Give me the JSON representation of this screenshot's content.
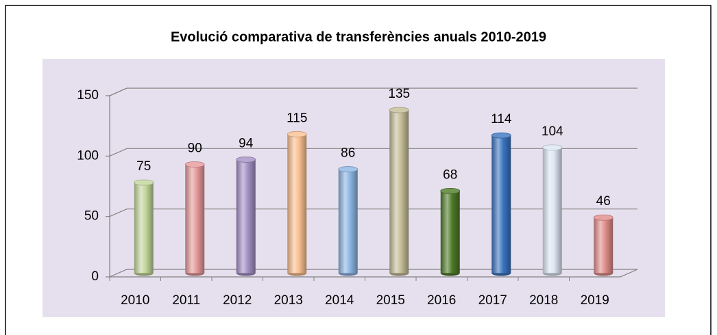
{
  "chart_data": {
    "type": "bar",
    "title": "Evolució comparativa de transferències anuals 2010-2019",
    "categories": [
      "2010",
      "2011",
      "2012",
      "2013",
      "2014",
      "2015",
      "2016",
      "2017",
      "2018",
      "2019"
    ],
    "values": [
      75,
      90,
      94,
      115,
      86,
      135,
      68,
      114,
      104,
      46
    ],
    "colors": [
      "#c3d69b",
      "#e6999a",
      "#a48fc4",
      "#fac090",
      "#8db4e2",
      "#c4bd97",
      "#4f7a28",
      "#3a74c0",
      "#dce6f2",
      "#e08c8a"
    ],
    "ylim": [
      0,
      150
    ],
    "yticks": [
      0,
      50,
      100,
      150
    ],
    "grid": true
  }
}
